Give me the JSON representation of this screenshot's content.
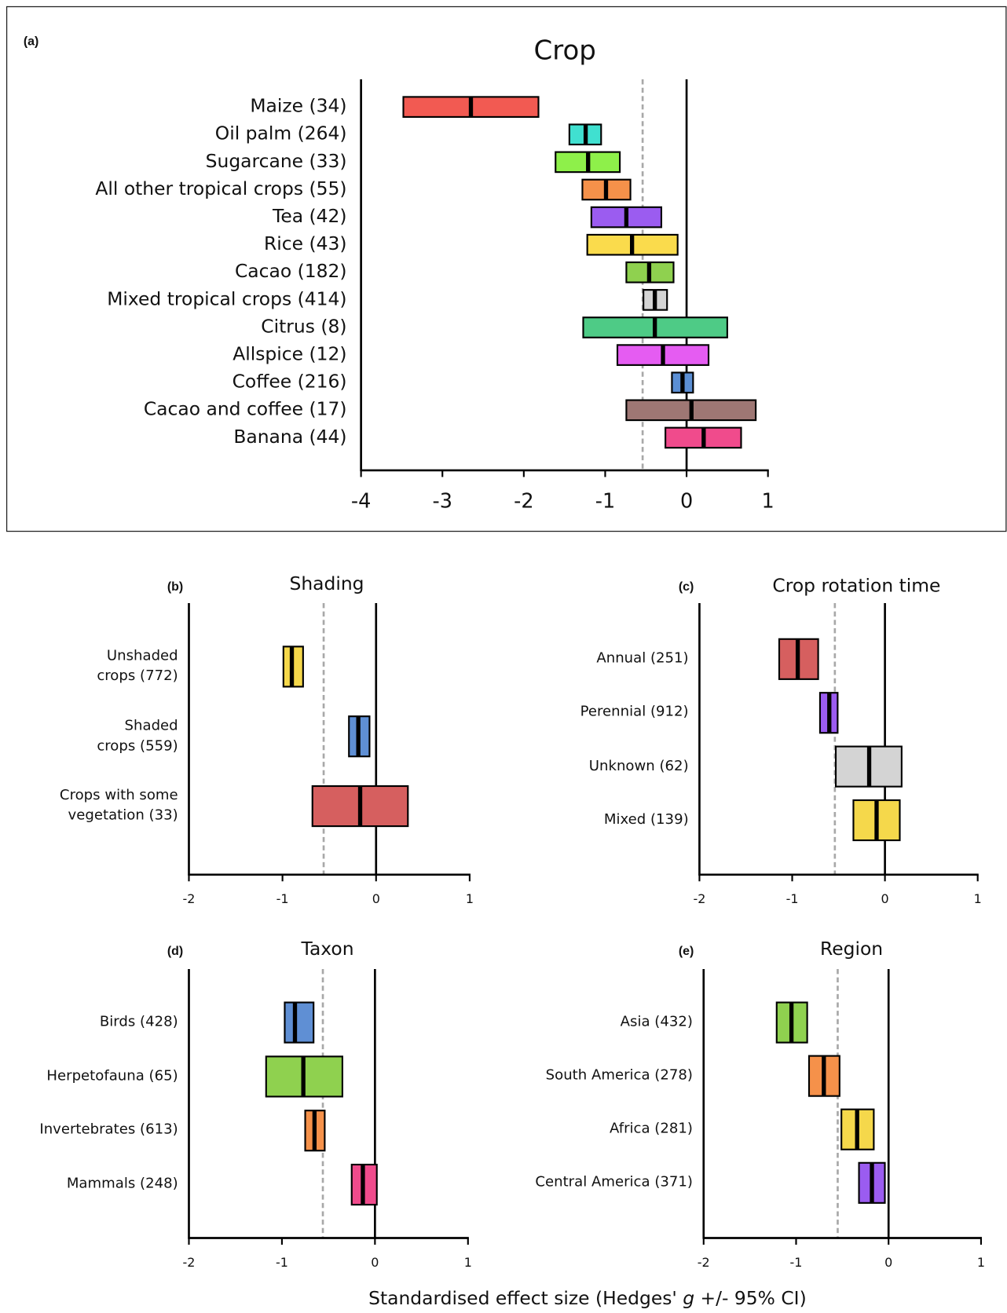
{
  "x_axis_label": [
    "Standardised effect size (Hedges' ",
    "g",
    " +/- 95% CI)"
  ],
  "chart_data": [
    {
      "type": "interval",
      "panel_label": "(a)",
      "title": "Crop",
      "categories": [
        "Maize (34)",
        "Oil palm (264)",
        "Sugarcane (33)",
        "All other tropical crops (55)",
        "Tea (42)",
        "Rice (43)",
        "Cacao (182)",
        "Mixed tropical crops (414)",
        "Citrus (8)",
        "Allspice (12)",
        "Coffee (216)",
        "Cacao and coffee (17)",
        "Banana (44)"
      ],
      "values": [
        -2.65,
        -1.24,
        -1.21,
        -0.99,
        -0.74,
        -0.67,
        -0.46,
        -0.39,
        -0.39,
        -0.29,
        -0.05,
        0.06,
        0.21
      ],
      "lower": [
        -3.48,
        -1.44,
        -1.61,
        -1.28,
        -1.17,
        -1.22,
        -0.74,
        -0.53,
        -1.27,
        -0.85,
        -0.18,
        -0.74,
        -0.26
      ],
      "upper": [
        -1.82,
        -1.05,
        -0.82,
        -0.69,
        -0.31,
        -0.11,
        -0.16,
        -0.24,
        0.5,
        0.27,
        0.08,
        0.85,
        0.67
      ],
      "colors": [
        "#f25a52",
        "#40e0d0",
        "#8ef04a",
        "#f5914a",
        "#9b5cf0",
        "#fadb4c",
        "#8fd14f",
        "#d4d4d4",
        "#4ecb86",
        "#e55cf2",
        "#5b8fd4",
        "#9e7774",
        "#f04b8c"
      ],
      "reference_value": -0.54,
      "xlim": [
        -4,
        1
      ],
      "xticks": [
        -4,
        -3,
        -2,
        -1,
        0,
        1
      ]
    },
    {
      "type": "interval",
      "panel_label": "(b)",
      "title": "Shading",
      "categories": [
        "Unshaded\ncrops (772)",
        "Shaded\ncrops (559)",
        "Crops with some\nvegetation (33)"
      ],
      "values": [
        -0.9,
        -0.19,
        -0.17
      ],
      "lower": [
        -0.99,
        -0.29,
        -0.68
      ],
      "upper": [
        -0.78,
        -0.07,
        0.34
      ],
      "colors": [
        "#f5d84b",
        "#5f8fd4",
        "#d65f5f"
      ],
      "reference_value": -0.56,
      "xlim": [
        -2,
        1
      ],
      "xticks": [
        -2,
        -1,
        0,
        1
      ]
    },
    {
      "type": "interval",
      "panel_label": "(c)",
      "title": "Crop rotation time",
      "categories": [
        "Annual (251)",
        "Perennial (912)",
        "Unknown (62)",
        "Mixed (139)"
      ],
      "values": [
        -0.94,
        -0.6,
        -0.17,
        -0.09
      ],
      "lower": [
        -1.14,
        -0.7,
        -0.53,
        -0.34
      ],
      "upper": [
        -0.72,
        -0.51,
        0.18,
        0.16
      ],
      "colors": [
        "#d65f5f",
        "#9b5cf0",
        "#d4d4d4",
        "#f5d84b"
      ],
      "reference_value": -0.54,
      "xlim": [
        -2,
        1
      ],
      "xticks": [
        -2,
        -1,
        0,
        1
      ]
    },
    {
      "type": "interval",
      "panel_label": "(d)",
      "title": "Taxon",
      "categories": [
        "Birds (428)",
        "Herpetofauna (65)",
        "Invertebrates (613)",
        "Mammals (248)"
      ],
      "values": [
        -0.86,
        -0.77,
        -0.65,
        -0.13
      ],
      "lower": [
        -0.97,
        -1.17,
        -0.75,
        -0.25
      ],
      "upper": [
        -0.66,
        -0.35,
        -0.54,
        0.02
      ],
      "colors": [
        "#5f8fd4",
        "#8fd14f",
        "#f5914a",
        "#f04b8c"
      ],
      "reference_value": -0.56,
      "xlim": [
        -2,
        1
      ],
      "xticks": [
        -2,
        -1,
        0,
        1
      ]
    },
    {
      "type": "interval",
      "panel_label": "(e)",
      "title": "Region",
      "categories": [
        "Asia (432)",
        "South America (278)",
        "Africa (281)",
        "Central America (371)"
      ],
      "values": [
        -1.05,
        -0.7,
        -0.34,
        -0.18
      ],
      "lower": [
        -1.21,
        -0.86,
        -0.51,
        -0.32
      ],
      "upper": [
        -0.88,
        -0.53,
        -0.16,
        -0.04
      ],
      "colors": [
        "#8fd14f",
        "#f5914a",
        "#f5d84b",
        "#9b5cf0"
      ],
      "reference_value": -0.55,
      "xlim": [
        -2,
        1
      ],
      "xticks": [
        -2,
        -1,
        0,
        1
      ]
    }
  ]
}
